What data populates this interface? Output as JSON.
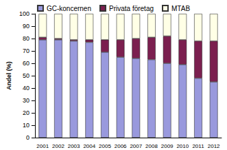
{
  "chart_data": {
    "type": "bar",
    "stacked": true,
    "y_label": "Andel (%)",
    "categories": [
      "2001",
      "2002",
      "2003",
      "2004",
      "2005",
      "2006",
      "2007",
      "2008",
      "2009",
      "2010",
      "2011",
      "2012"
    ],
    "series": [
      {
        "name": "GC-koncernen",
        "color": "#9999dd",
        "values": [
          79,
          79,
          78,
          77,
          69,
          65,
          64,
          63,
          60,
          59,
          48,
          45
        ]
      },
      {
        "name": "Privata företag",
        "color": "#7b1f4f",
        "values": [
          2,
          1,
          1,
          2,
          10,
          14,
          16,
          18,
          22,
          20,
          30,
          33
        ]
      },
      {
        "name": "MTAB",
        "color": "#ffffe6",
        "values": [
          19,
          20,
          21,
          21,
          21,
          21,
          20,
          19,
          18,
          21,
          22,
          22
        ]
      }
    ],
    "ylim": [
      0,
      100
    ],
    "yticks": [
      0,
      10,
      20,
      30,
      40,
      50,
      60,
      70,
      80,
      90,
      100
    ],
    "grid": false,
    "legend": "top"
  }
}
